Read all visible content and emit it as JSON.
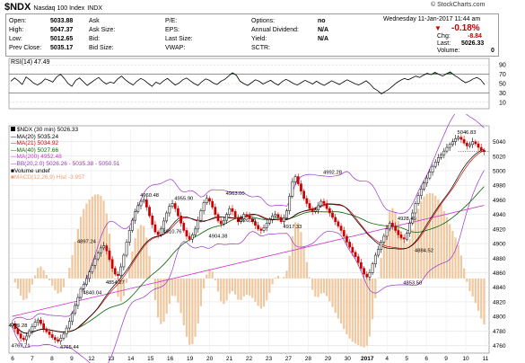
{
  "header": {
    "symbol": "$NDX",
    "name": "Nasdaq 100 Index",
    "exchange": "INDX",
    "watermark": "© StockCharts.com",
    "date_line": "Wednesday  11-Jan-2017  11:44 am",
    "change_pct": "-0.18%",
    "fields": [
      {
        "label": "Open:",
        "value": "5033.88"
      },
      {
        "label": "High:",
        "value": "5047.37"
      },
      {
        "label": "Low:",
        "value": "5012.65"
      },
      {
        "label": "Prev Close:",
        "value": "5035.17"
      },
      {
        "label": "Ask",
        "value": ""
      },
      {
        "label": "Ask Size:",
        "value": ""
      },
      {
        "label": "Bid:",
        "value": ""
      },
      {
        "label": "Bid Size:",
        "value": ""
      },
      {
        "label": "P/E:",
        "value": ""
      },
      {
        "label": "EPS:",
        "value": ""
      },
      {
        "label": "Last Size:",
        "value": ""
      },
      {
        "label": "VWAP:",
        "value": ""
      },
      {
        "label": "Options:",
        "value": "no"
      },
      {
        "label": "Annual Dividend:",
        "value": "N/A"
      },
      {
        "label": "Yield:",
        "value": "N/A"
      },
      {
        "label": "SCTR:",
        "value": ""
      },
      {
        "label": "Chg:",
        "value": "-8.84"
      },
      {
        "label": "Last:",
        "value": "5026.33"
      },
      {
        "label": "Volume:",
        "value": "0"
      }
    ]
  },
  "colors": {
    "price_up": "#000000",
    "price_down": "#cc0000",
    "ma20": "#000000",
    "ma21": "#cc0000",
    "ma40": "#006600",
    "ma200": "#cc33cc",
    "bb": "#9933cc",
    "macd": "#f0c8a0",
    "rsi_fill": "#2e7d32",
    "rsi_oversold": "#d32f2f"
  },
  "chart_data": [
    {
      "type": "line",
      "title": "RSI(14) 47.49",
      "y_ticks": [
        90,
        70,
        50,
        30,
        10
      ],
      "ylim": [
        0,
        100
      ],
      "overbought": 70,
      "oversold": 30,
      "values": [
        55,
        62,
        56,
        48,
        64,
        58,
        51,
        47,
        52,
        60,
        57,
        53,
        64,
        70,
        61,
        50,
        44,
        57,
        62,
        54,
        46,
        52,
        58,
        63,
        55,
        49,
        53,
        51,
        60,
        66,
        58,
        52,
        47,
        55,
        61,
        57,
        50,
        44,
        53,
        49,
        56,
        61,
        54,
        47,
        51,
        58,
        62,
        56,
        50,
        46,
        54,
        60,
        57,
        51,
        48,
        55,
        59,
        66,
        73,
        68,
        55,
        50,
        46,
        52,
        58,
        55,
        49,
        53,
        57,
        51,
        47,
        54,
        59,
        55,
        50,
        47,
        52,
        57,
        53,
        49,
        55,
        50,
        46,
        51,
        56,
        52,
        48,
        53,
        58,
        54,
        50,
        47,
        51,
        56,
        49,
        40,
        35,
        28,
        33,
        38,
        45,
        52,
        57,
        61,
        58,
        62,
        66,
        63,
        68,
        72,
        69,
        74,
        70,
        66,
        71,
        75,
        68,
        63,
        57,
        52,
        55,
        60,
        63,
        58,
        47.49
      ]
    },
    {
      "type": "candlestick",
      "legend": [
        "$NDX (30 min) 5026.33",
        "MA(20) 5035.24",
        "MA(21) 5034.92",
        "MA(40) 5027.66",
        "MA(200) 4952.48",
        "BB(20,2.0) 5026.26 - 5035.38 - 5050.51",
        "Volume undef",
        "MACD(12,26,9) Hist -3.957"
      ],
      "y_ticks": [
        5040,
        5020,
        5000,
        4980,
        4960,
        4940,
        4920,
        4900,
        4880,
        4860,
        4840,
        4820,
        4800,
        4780,
        4760
      ],
      "ylim": [
        4752,
        5058
      ],
      "x_labels": [
        "6",
        "7",
        "8",
        "9",
        "12",
        "13",
        "14",
        "15",
        "16",
        "19",
        "20",
        "21",
        "22",
        "23",
        "27",
        "28",
        "29",
        "30",
        "2017",
        "4",
        "5",
        "6",
        "9",
        "10",
        "11"
      ],
      "annotations": [
        {
          "label": "4795.28",
          "x": 1,
          "price": 4795.28
        },
        {
          "label": "4767.71",
          "x": 3,
          "price": 4767.71
        },
        {
          "label": "4765.44",
          "x": 20,
          "price": 4765.44
        },
        {
          "label": "4840.04",
          "x": 28,
          "price": 4840.04
        },
        {
          "label": "4897.24",
          "x": 26,
          "price": 4897.24
        },
        {
          "label": "4854.27",
          "x": 36,
          "price": 4854.27
        },
        {
          "label": "4960.48",
          "x": 48,
          "price": 4960.48
        },
        {
          "label": "4910.76",
          "x": 56,
          "price": 4910.76
        },
        {
          "label": "4955.90",
          "x": 60,
          "price": 4955.9
        },
        {
          "label": "4904.38",
          "x": 72,
          "price": 4904.38
        },
        {
          "label": "4963.00",
          "x": 78,
          "price": 4963.0
        },
        {
          "label": "4926.16",
          "x": 82,
          "price": 4926.16
        },
        {
          "label": "4917.33",
          "x": 98,
          "price": 4917.33
        },
        {
          "label": "4992.28",
          "x": 112,
          "price": 4992.28
        },
        {
          "label": "4928.49",
          "x": 138,
          "price": 4928.49
        },
        {
          "label": "4884.52",
          "x": 144,
          "price": 4884.52
        },
        {
          "label": "4853.50",
          "x": 140,
          "price": 4853.5
        },
        {
          "label": "5046.83",
          "x": 178,
          "price": 5046.83
        }
      ],
      "close": [
        4790,
        4783,
        4776,
        4770,
        4768,
        4773,
        4780,
        4786,
        4792,
        4795,
        4790,
        4783,
        4779,
        4775,
        4771,
        4768,
        4766,
        4770,
        4776,
        4784,
        4793,
        4804,
        4815,
        4826,
        4838,
        4844,
        4852,
        4861,
        4870,
        4879,
        4887,
        4894,
        4897,
        4890,
        4878,
        4866,
        4858,
        4856,
        4868,
        4884,
        4902,
        4918,
        4932,
        4944,
        4952,
        4958,
        4960,
        4950,
        4938,
        4926,
        4916,
        4912,
        4920,
        4931,
        4942,
        4951,
        4955,
        4948,
        4938,
        4928,
        4918,
        4910,
        4906,
        4912,
        4920,
        4932,
        4945,
        4956,
        4962,
        4958,
        4950,
        4940,
        4931,
        4927,
        4932,
        4940,
        4948,
        4944,
        4936,
        4930,
        4934,
        4940,
        4938,
        4934,
        4930,
        4925,
        4920,
        4918,
        4922,
        4928,
        4933,
        4938,
        4940,
        4936,
        4930,
        4935,
        4945,
        4965,
        4985,
        4992,
        4982,
        4972,
        4962,
        4955,
        4948,
        4944,
        4946,
        4952,
        4958,
        4955,
        4948,
        4942,
        4936,
        4930,
        4924,
        4918,
        4910,
        4902,
        4895,
        4888,
        4882,
        4874,
        4866,
        4858,
        4854,
        4860,
        4872,
        4884,
        4892,
        4902,
        4910,
        4920,
        4928,
        4924,
        4918,
        4912,
        4908,
        4906,
        4914,
        4928,
        4942,
        4955,
        4966,
        4975,
        4983,
        4990,
        4998,
        5006,
        5012,
        5018,
        5022,
        5027,
        5032,
        5036,
        5040,
        5044,
        5046,
        5043,
        5038,
        5034,
        5036,
        5040,
        5037,
        5032,
        5028,
        5026.33
      ]
    },
    {
      "type": "bar",
      "title": "MACD(12,26,9) Hist",
      "note": "Histogram drawn beneath the price panel"
    }
  ]
}
